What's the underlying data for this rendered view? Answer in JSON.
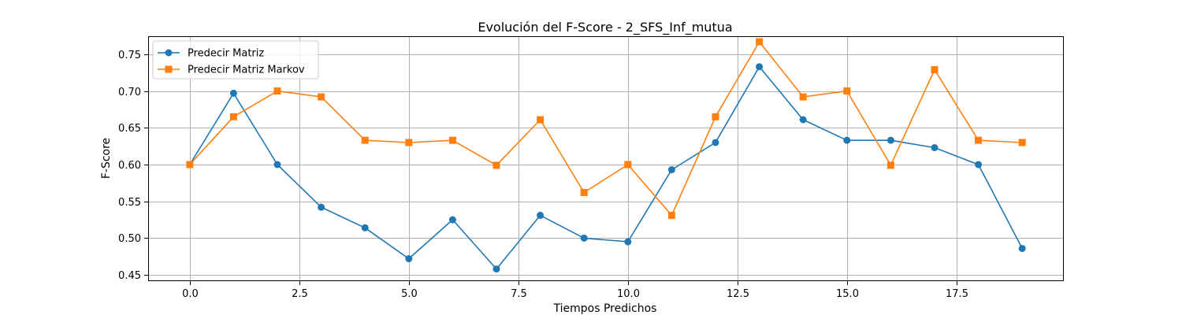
{
  "chart_data": {
    "type": "line",
    "title": "Evolución del F-Score - 2_SFS_Inf_mutua",
    "xlabel": "Tiempos Predichos",
    "ylabel": "F-Score",
    "xlim": [
      -0.95,
      19.95
    ],
    "ylim": [
      0.4415,
      0.7745
    ],
    "xticks": [
      0.0,
      2.5,
      5.0,
      7.5,
      10.0,
      12.5,
      15.0,
      17.5
    ],
    "xtick_labels": [
      "0.0",
      "2.5",
      "5.0",
      "7.5",
      "10.0",
      "12.5",
      "15.0",
      "17.5"
    ],
    "yticks": [
      0.45,
      0.5,
      0.55,
      0.6,
      0.65,
      0.7,
      0.75
    ],
    "ytick_labels": [
      "0.45",
      "0.50",
      "0.55",
      "0.60",
      "0.65",
      "0.70",
      "0.75"
    ],
    "grid": true,
    "legend_position": "top-left",
    "x": [
      0,
      1,
      2,
      3,
      4,
      5,
      6,
      7,
      8,
      9,
      10,
      11,
      12,
      13,
      14,
      15,
      16,
      17,
      18,
      19
    ],
    "series": [
      {
        "name": "Predecir Matriz",
        "color": "#1f77b4",
        "marker": "circle",
        "values": [
          0.6,
          0.697,
          0.6,
          0.542,
          0.514,
          0.472,
          0.525,
          0.458,
          0.531,
          0.5,
          0.495,
          0.593,
          0.63,
          0.733,
          0.661,
          0.633,
          0.633,
          0.623,
          0.6,
          0.486
        ]
      },
      {
        "name": "Predecir Matriz Markov",
        "color": "#ff7f0e",
        "marker": "square",
        "values": [
          0.6,
          0.665,
          0.7,
          0.692,
          0.633,
          0.63,
          0.633,
          0.599,
          0.661,
          0.562,
          0.6,
          0.531,
          0.665,
          0.767,
          0.692,
          0.7,
          0.599,
          0.729,
          0.633,
          0.63
        ]
      }
    ]
  }
}
